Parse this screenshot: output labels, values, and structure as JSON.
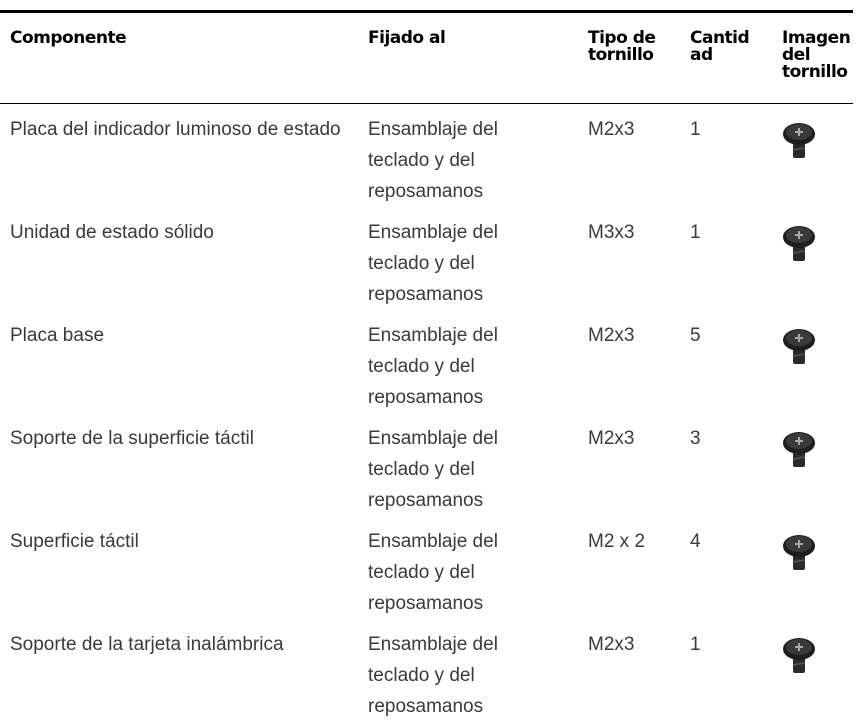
{
  "table": {
    "header": [
      "Componente",
      "Fijado al",
      "Tipo de\ntornillo",
      "Cantid\nad",
      "Imagen\ndel\ntornillo"
    ],
    "rows": [
      [
        "Placa del indicador luminoso de estado",
        "Ensamblaje del teclado y del reposamanos",
        "M2x3",
        1
      ],
      [
        "Unidad de estado sólido",
        "Ensamblaje del teclado y del reposamanos",
        "M3x3",
        1
      ],
      [
        "Placa base",
        "Ensamblaje del teclado y del reposamanos",
        "M2x3",
        5
      ],
      [
        "Soporte de la superficie táctil",
        "Ensamblaje del teclado y del reposamanos",
        "M2x3",
        3
      ],
      [
        "Superficie táctil",
        "Ensamblaje del teclado y del reposamanos",
        "M2 x 2",
        4
      ],
      [
        "Soporte de la tarjeta inalámbrica",
        "Ensamblaje del teclado y del reposamanos",
        "M2x3",
        1
      ]
    ]
  }
}
